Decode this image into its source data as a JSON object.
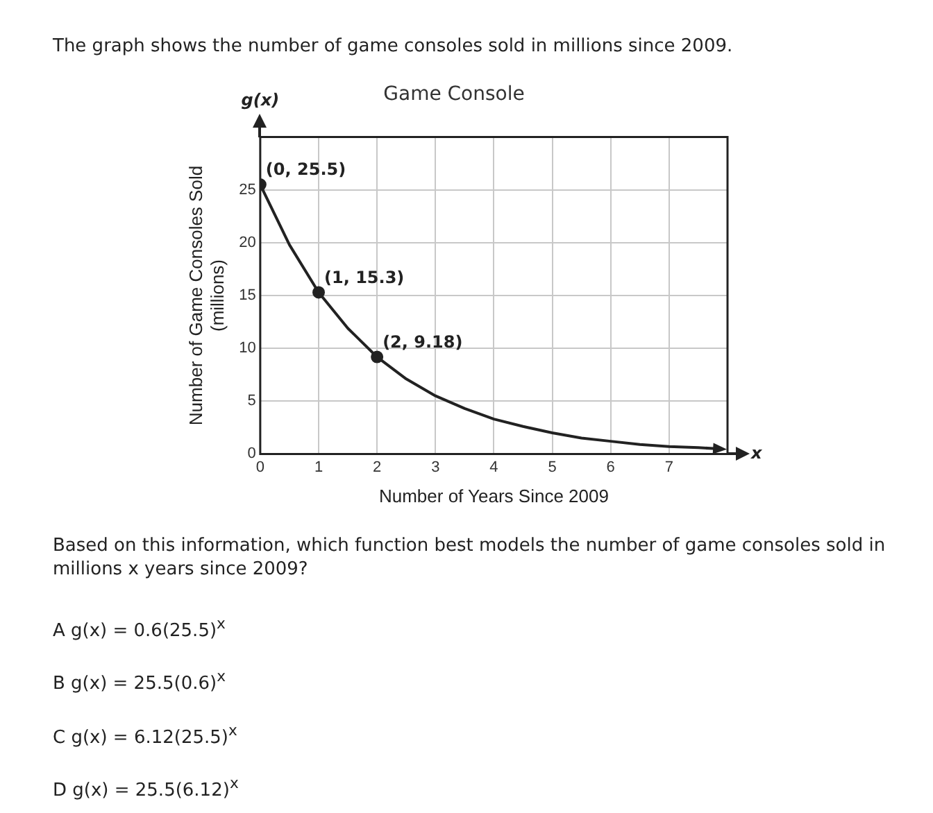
{
  "chart_data": {
    "type": "line",
    "title": "Game Console",
    "xlabel": "Number of Years Since 2009",
    "ylabel": "Number of Game Consoles Sold\n(millions)",
    "xlim": [
      0,
      8
    ],
    "xticks": [
      0,
      1,
      2,
      3,
      4,
      5,
      6,
      7
    ],
    "ylim": [
      0,
      30
    ],
    "yticks": [
      0,
      5,
      10,
      15,
      20,
      25
    ],
    "grid": true,
    "legend": false,
    "series": [
      {
        "type": "line",
        "color": "#222222",
        "marker": "none",
        "x": [
          0,
          0.5,
          1,
          1.5,
          2,
          2.5,
          3,
          3.5,
          4,
          4.5,
          5,
          5.5,
          6,
          6.5,
          7,
          7.5,
          7.8
        ],
        "values": [
          25.5,
          19.8,
          15.3,
          11.9,
          9.18,
          7.1,
          5.5,
          4.3,
          3.3,
          2.6,
          2.0,
          1.5,
          1.2,
          0.9,
          0.7,
          0.6,
          0.5
        ]
      },
      {
        "type": "scatter",
        "color": "#222222",
        "marker": "circle",
        "x": [
          0,
          1,
          2
        ],
        "values": [
          25.5,
          15.3,
          9.18
        ]
      }
    ],
    "annotations": [
      "The graph shows the number of game consoles sold in millions since 2009.",
      "g(x)",
      "x",
      {
        "text": "(0, 25.5)",
        "x": 0,
        "y": 25.5
      },
      {
        "text": "(1, 15.3)",
        "x": 1,
        "y": 15.3
      },
      {
        "text": "(2, 9.18)",
        "x": 2,
        "y": 9.18
      },
      "Based on this information, which function best models the number of game consoles sold in millions x years since 2009?",
      "A  g(x) = 0.6(25.5)$^{x}$",
      "B  g(x) = 25.5(0.6)$^{x}$",
      "C  g(x) = 6.12(25.5)$^{x}$",
      "D  g(x) = 25.5(6.12)$^{x}$"
    ]
  }
}
